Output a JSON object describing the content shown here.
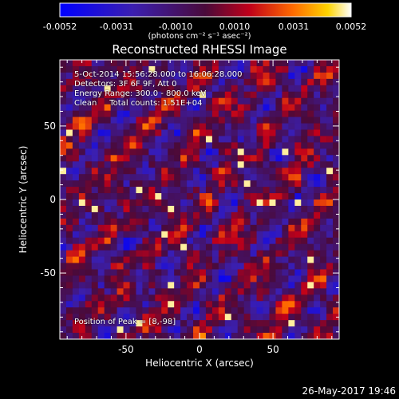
{
  "colorbar": {
    "ticks": [
      "-0.0052",
      "-0.0031",
      "-0.0010",
      "0.0010",
      "0.0031",
      "0.0052"
    ],
    "unit": "(photons cm⁻² s⁻¹ asec⁻²)",
    "min": -0.0052,
    "max": 0.0052
  },
  "header": {
    "title": "Reconstructed RHESSI Image"
  },
  "info": {
    "line1": "5-Oct-2014 15:56:28.000 to 16:06:28.000",
    "line2": "Detectors: 3F 6F 9F, Att 0",
    "line3": "Energy Range: 300.0 - 800.0 keV",
    "line4": "Clean     Total counts: 1.51E+04",
    "peak": "Position of Peak = [8,-98]"
  },
  "footer": {
    "timestamp": "26-May-2017 19:46"
  },
  "chart_data": {
    "type": "heatmap",
    "title": "Reconstructed RHESSI Image",
    "xlabel": "Heliocentric X (arcsec)",
    "ylabel": "Heliocentric Y (arcsec)",
    "xlim": [
      -95,
      95
    ],
    "ylim": [
      -95,
      95
    ],
    "xticks": [
      -50,
      0,
      50
    ],
    "yticks": [
      50,
      0,
      -50
    ],
    "colormap": "blue-purple-red-yellow-white",
    "value_range": [
      -0.0052,
      0.0052
    ],
    "peak_position": [
      8,
      -98
    ]
  }
}
